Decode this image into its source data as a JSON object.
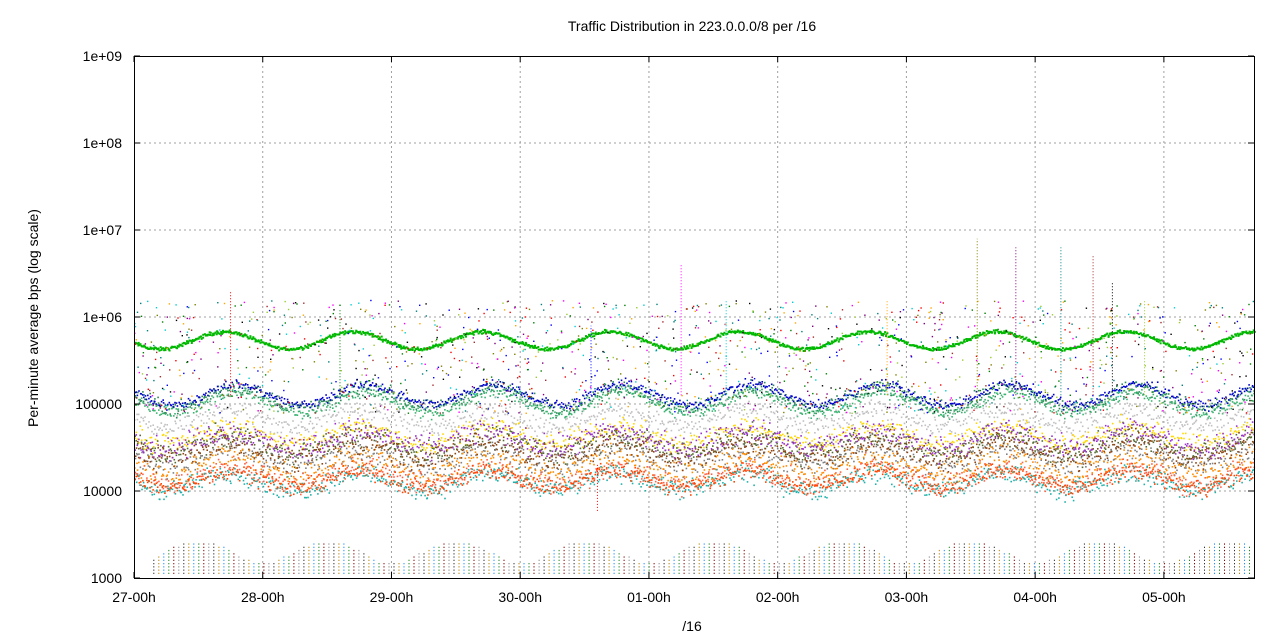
{
  "chart_data": {
    "type": "scatter",
    "title": "Traffic Distribution in 223.0.0.0/8 per /16",
    "xlabel": "/16",
    "ylabel": "Per-minute average bps (log scale)",
    "x_unit": "days",
    "xlim": [
      0,
      8.7
    ],
    "ylim": [
      1000,
      1000000000
    ],
    "y_scale": "log",
    "grid": true,
    "legend": "none",
    "x_ticks": [
      {
        "x": 0,
        "label": "27-00h"
      },
      {
        "x": 1,
        "label": "28-00h"
      },
      {
        "x": 2,
        "label": "29-00h"
      },
      {
        "x": 3,
        "label": "30-00h"
      },
      {
        "x": 4,
        "label": "01-00h"
      },
      {
        "x": 5,
        "label": "02-00h"
      },
      {
        "x": 6,
        "label": "03-00h"
      },
      {
        "x": 7,
        "label": "04-00h"
      },
      {
        "x": 8,
        "label": "05-00h"
      }
    ],
    "y_ticks": [
      {
        "y": 1000,
        "label": "1000"
      },
      {
        "y": 10000,
        "label": "10000"
      },
      {
        "y": 100000,
        "label": "100000"
      },
      {
        "y": 1000000,
        "label": "1e+06"
      },
      {
        "y": 10000000,
        "label": "1e+07"
      },
      {
        "y": 100000000,
        "label": "1e+08"
      },
      {
        "y": 1000000000,
        "label": "1e+09"
      }
    ],
    "bands": [
      {
        "color": "#00b800",
        "center": 550000,
        "amplitude_log10": 0.1,
        "spread_log10": 0.015,
        "phase": 0.45
      },
      {
        "color": "#2e8b57",
        "center": 120000,
        "amplitude_log10": 0.12,
        "spread_log10": 0.06,
        "phase": 0.55
      },
      {
        "color": "#0000cc",
        "center": 130000,
        "amplitude_log10": 0.12,
        "spread_log10": 0.04,
        "phase": 0.55
      },
      {
        "color": "#3cb371",
        "center": 105000,
        "amplitude_log10": 0.12,
        "spread_log10": 0.05,
        "phase": 0.55
      },
      {
        "color": "#c0c0c0",
        "center": 70000,
        "amplitude_log10": 0.1,
        "spread_log10": 0.08,
        "phase": 0.5
      },
      {
        "color": "#ffd700",
        "center": 45000,
        "amplitude_log10": 0.1,
        "spread_log10": 0.08,
        "phase": 0.5
      },
      {
        "color": "#556b2f",
        "center": 35000,
        "amplitude_log10": 0.1,
        "spread_log10": 0.1,
        "phase": 0.5
      },
      {
        "color": "#808080",
        "center": 25000,
        "amplitude_log10": 0.1,
        "spread_log10": 0.1,
        "phase": 0.5
      },
      {
        "color": "#ff8c00",
        "center": 20000,
        "amplitude_log10": 0.1,
        "spread_log10": 0.1,
        "phase": 0.5
      },
      {
        "color": "#ff6347",
        "center": 15000,
        "amplitude_log10": 0.1,
        "spread_log10": 0.09,
        "phase": 0.5
      },
      {
        "color": "#20b2aa",
        "center": 13000,
        "amplitude_log10": 0.1,
        "spread_log10": 0.08,
        "phase": 0.5
      },
      {
        "color": "#ff4500",
        "center": 14000,
        "amplitude_log10": 0.1,
        "spread_log10": 0.07,
        "phase": 0.5
      },
      {
        "color": "#8b4513",
        "center": 30000,
        "amplitude_log10": 0.1,
        "spread_log10": 0.1,
        "phase": 0.5
      },
      {
        "color": "#9932cc",
        "center": 40000,
        "amplitude_log10": 0.1,
        "spread_log10": 0.1,
        "phase": 0.5
      }
    ],
    "low_band": {
      "min": 1000,
      "max": 3000,
      "colors": [
        "#333333",
        "#b8860b",
        "#1e90ff",
        "#228b22",
        "#8b0000",
        "#888888"
      ]
    },
    "scatter_colors": [
      "#ff0000",
      "#008000",
      "#0000ff",
      "#ff00ff",
      "#00ced1",
      "#ffa500",
      "#808000",
      "#800080",
      "#008080",
      "#a52a2a",
      "#000000",
      "#9acd32"
    ]
  }
}
